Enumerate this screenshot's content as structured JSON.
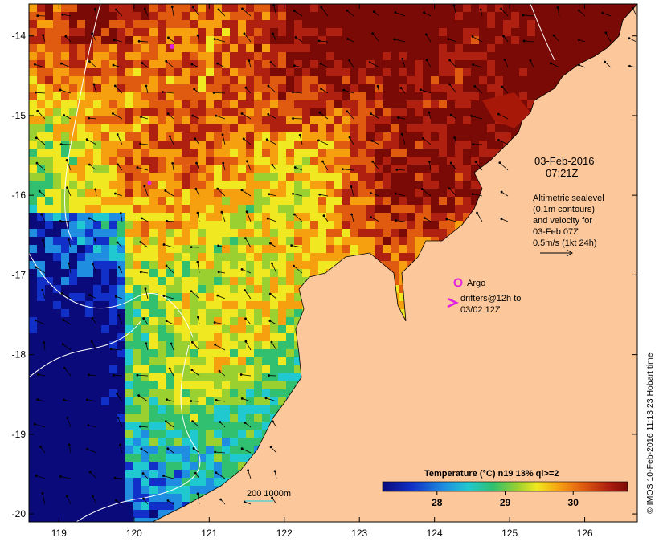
{
  "map": {
    "date": "03-Feb-2016",
    "time": "07:21Z",
    "x_ticks": [
      "119",
      "120",
      "121",
      "122",
      "123",
      "124",
      "125",
      "126"
    ],
    "y_ticks": [
      "-14",
      "-15",
      "-16",
      "-17",
      "-18",
      "-19",
      "-20"
    ],
    "lon_range": [
      118.6,
      126.7
    ],
    "lat_range": [
      -20.1,
      -13.6
    ]
  },
  "legend": {
    "altimetry_lines": [
      "Altimetric sealevel",
      "(0.1m contours)",
      "and velocity for",
      "03-Feb 07Z",
      "0.5m/s (1kt 24h)"
    ],
    "argo_label": "Argo",
    "drifters_lines": [
      "drifters@12h to",
      "03/02 12Z"
    ],
    "argo_color": "#e020e0",
    "drifter_color": "#e020e0"
  },
  "colorbar": {
    "title": "Temperature (°C) n19 13% ql>=2",
    "ticks": [
      "28",
      "29",
      "30"
    ],
    "tick_values": [
      28,
      29,
      30
    ],
    "range": [
      27.2,
      30.8
    ]
  },
  "isobath": {
    "label": "200  1000m"
  },
  "credit": {
    "text": "© IMOS 10-Feb-2016 11:13:23 Hobart time"
  },
  "colors": {
    "land": "#fcc89b",
    "coast": "#000000",
    "frame": "#000000"
  }
}
